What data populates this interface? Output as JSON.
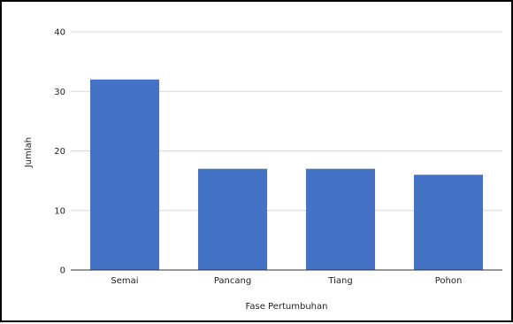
{
  "chart_data": {
    "type": "bar",
    "title": "",
    "xlabel": "Fase Pertumbuhan",
    "ylabel": "Jumlah",
    "categories": [
      "Semai",
      "Pancang",
      "Tiang",
      "Pohon"
    ],
    "values": [
      32,
      17,
      17,
      16
    ],
    "ylim": [
      0,
      40
    ],
    "yticks": [
      0,
      10,
      20,
      30,
      40
    ],
    "grid": true,
    "legend": "none",
    "bar_color": "#4472C4",
    "grid_color": "#d9d9d9",
    "axis_color": "#333333"
  }
}
